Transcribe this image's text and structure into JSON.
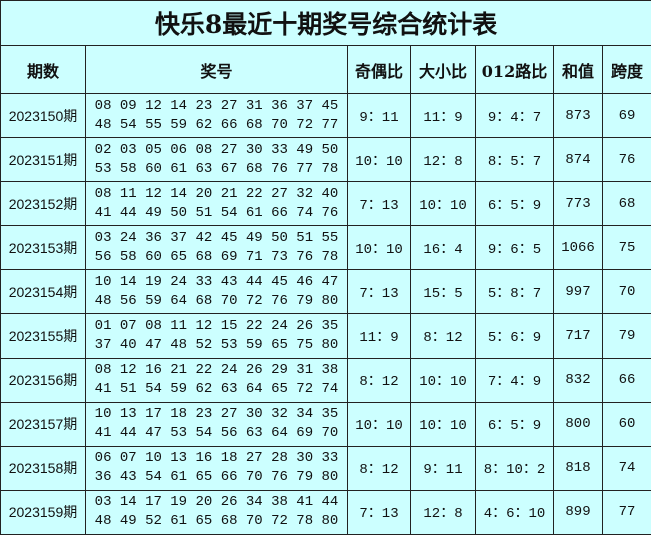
{
  "title": "快乐8最近十期奖号综合统计表",
  "headers": [
    "期数",
    "奖号",
    "奇偶比",
    "大小比",
    "012路比",
    "和值",
    "跨度"
  ],
  "rows": [
    {
      "period": "2023150期",
      "line1": "08 09 12 14 23 27 31 36 37 45",
      "line2": "48 54 55 59 62 66 68 70 72 77",
      "odd_even": "9：11",
      "big_small": "11：9",
      "mod012": "9：4：7",
      "sum": "873",
      "span": "69"
    },
    {
      "period": "2023151期",
      "line1": "02 03 05 06 08 27 30 33 49 50",
      "line2": "53 58 60 61 63 67 68 76 77 78",
      "odd_even": "10：10",
      "big_small": "12：8",
      "mod012": "8：5：7",
      "sum": "874",
      "span": "76"
    },
    {
      "period": "2023152期",
      "line1": "08 11 12 14 20 21 22 27 32 40",
      "line2": "41 44 49 50 51 54 61 66 74 76",
      "odd_even": "7：13",
      "big_small": "10：10",
      "mod012": "6：5：9",
      "sum": "773",
      "span": "68"
    },
    {
      "period": "2023153期",
      "line1": "03 24 36 37 42 45 49 50 51 55",
      "line2": "56 58 60 65 68 69 71 73 76 78",
      "odd_even": "10：10",
      "big_small": "16：4",
      "mod012": "9：6：5",
      "sum": "1066",
      "span": "75"
    },
    {
      "period": "2023154期",
      "line1": "10 14 19 24 33 43 44 45 46 47",
      "line2": "48 56 59 64 68 70 72 76 79 80",
      "odd_even": "7：13",
      "big_small": "15：5",
      "mod012": "5：8：7",
      "sum": "997",
      "span": "70"
    },
    {
      "period": "2023155期",
      "line1": "01 07 08 11 12 15 22 24 26 35",
      "line2": "37 40 47 48 52 53 59 65 75 80",
      "odd_even": "11：9",
      "big_small": "8：12",
      "mod012": "5：6：9",
      "sum": "717",
      "span": "79"
    },
    {
      "period": "2023156期",
      "line1": "08 12 16 21 22 24 26 29 31 38",
      "line2": "41 51 54 59 62 63 64 65 72 74",
      "odd_even": "8：12",
      "big_small": "10：10",
      "mod012": "7：4：9",
      "sum": "832",
      "span": "66"
    },
    {
      "period": "2023157期",
      "line1": "10 13 17 18 23 27 30 32 34 35",
      "line2": "41 44 47 53 54 56 63 64 69 70",
      "odd_even": "10：10",
      "big_small": "10：10",
      "mod012": "6：5：9",
      "sum": "800",
      "span": "60"
    },
    {
      "period": "2023158期",
      "line1": "06 07 10 13 16 18 27 28 30 33",
      "line2": "36 43 54 61 65 66 70 76 79 80",
      "odd_even": "8：12",
      "big_small": "9：11",
      "mod012": "8：10：2",
      "sum": "818",
      "span": "74"
    },
    {
      "period": "2023159期",
      "line1": "03 14 17 19 20 26 34 38 41 44",
      "line2": "48 49 52 61 65 68 70 72 78 80",
      "odd_even": "7：13",
      "big_small": "12：8",
      "mod012": "4：6：10",
      "sum": "899",
      "span": "77"
    }
  ]
}
